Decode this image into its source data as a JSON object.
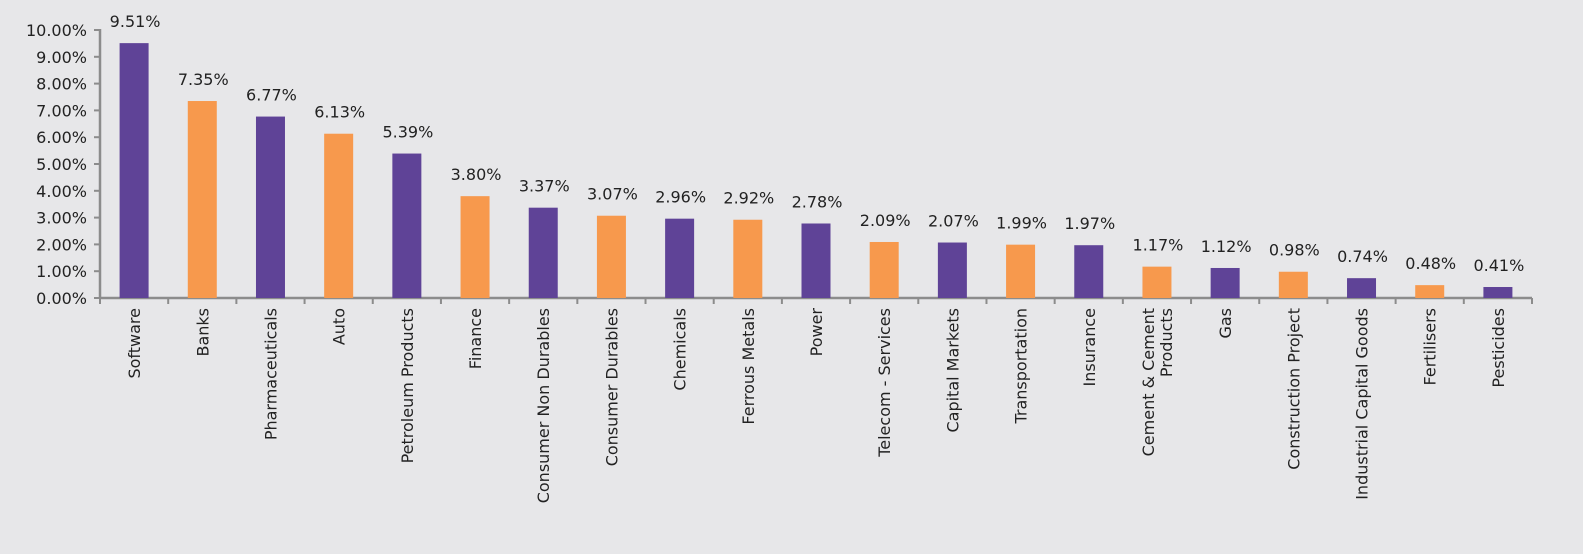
{
  "chart_data": {
    "type": "bar",
    "categories": [
      "Software",
      "Banks",
      "Pharmaceuticals",
      "Auto",
      "Petroleum Products",
      "Finance",
      "Consumer Non Durables",
      "Consumer Durables",
      "Chemicals",
      "Ferrous Metals",
      "Power",
      "Telecom - Services",
      "Capital Markets",
      "Transportation",
      "Insurance",
      "Cement & Cement Products",
      "Gas",
      "Construction Project",
      "Industrial Capital Goods",
      "Fertilisers",
      "Pesticides"
    ],
    "category_lines": [
      [
        "Software"
      ],
      [
        "Banks"
      ],
      [
        "Pharmaceuticals"
      ],
      [
        "Auto"
      ],
      [
        "Petroleum Products"
      ],
      [
        "Finance"
      ],
      [
        "Consumer Non Durables"
      ],
      [
        "Consumer Durables"
      ],
      [
        "Chemicals"
      ],
      [
        "Ferrous Metals"
      ],
      [
        "Power"
      ],
      [
        "Telecom - Services"
      ],
      [
        "Capital Markets"
      ],
      [
        "Transportation"
      ],
      [
        "Insurance"
      ],
      [
        "Cement & Cement",
        "Products"
      ],
      [
        "Gas"
      ],
      [
        "Construction Project"
      ],
      [
        "Industrial Capital Goods"
      ],
      [
        "Fertilisers"
      ],
      [
        "Pesticides"
      ]
    ],
    "values": [
      9.51,
      7.35,
      6.77,
      6.13,
      5.39,
      3.8,
      3.37,
      3.07,
      2.96,
      2.92,
      2.78,
      2.09,
      2.07,
      1.99,
      1.97,
      1.17,
      1.12,
      0.98,
      0.74,
      0.48,
      0.41
    ],
    "value_labels": [
      "9.51%",
      "7.35%",
      "6.77%",
      "6.13%",
      "5.39%",
      "3.80%",
      "3.37%",
      "3.07%",
      "2.96%",
      "2.92%",
      "2.78%",
      "2.09%",
      "2.07%",
      "1.99%",
      "1.97%",
      "1.17%",
      "1.12%",
      "0.98%",
      "0.74%",
      "0.48%",
      "0.41%"
    ],
    "ylim": [
      0,
      10
    ],
    "yticks": [
      0,
      1,
      2,
      3,
      4,
      5,
      6,
      7,
      8,
      9,
      10
    ],
    "ytick_labels": [
      "0.00%",
      "1.00%",
      "2.00%",
      "3.00%",
      "4.00%",
      "5.00%",
      "6.00%",
      "7.00%",
      "8.00%",
      "9.00%",
      "10.00%"
    ],
    "title": "",
    "xlabel": "",
    "ylabel": "",
    "grid": false,
    "legend": "none",
    "colors": {
      "primary": "#5f4397",
      "secondary": "#f7994d",
      "axis": "#8c8c8c",
      "background": "#e7e7e9"
    },
    "color_pattern": "alternating"
  }
}
